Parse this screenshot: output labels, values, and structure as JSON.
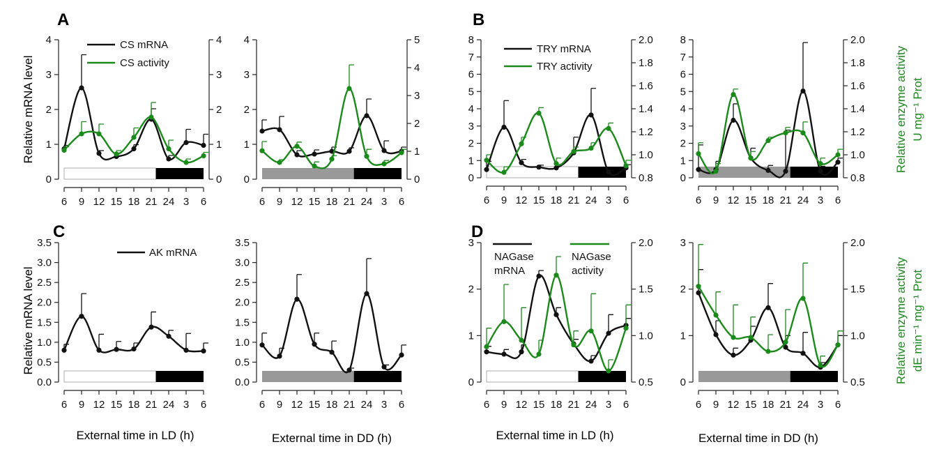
{
  "colors": {
    "mrna": "#111111",
    "activity": "#1a8a1a",
    "light_bar": "#ffffff",
    "subjective_day_bar": "#999999",
    "dark_bar": "#000000"
  },
  "ylabels": {
    "mrna": "Relative mRNA level",
    "activity_line1": "Relative enzyme activity",
    "activity_B_line2": "U mg⁻¹ Prot",
    "activity_D_line2": "dE min⁻¹ mg⁻¹ Prot"
  },
  "xlabels": {
    "ld": "External time in LD (h)",
    "dd": "External time in DD (h)"
  },
  "panels": [
    {
      "letter": "A",
      "legend": [
        "CS mRNA",
        "CS activity"
      ]
    },
    {
      "letter": "B",
      "legend": [
        "TRY mRNA",
        "TRY activity"
      ]
    },
    {
      "letter": "C",
      "legend": [
        "AK mRNA"
      ]
    },
    {
      "letter": "D",
      "legend": [
        "NAGase",
        "mRNA",
        "NAGase",
        "activity"
      ]
    }
  ],
  "chart_data": [
    {
      "id": "A-LD",
      "type": "line",
      "x": [
        6,
        9,
        12,
        15,
        18,
        21,
        24,
        27,
        30
      ],
      "xtick_labels": [
        "6",
        "9",
        "12",
        "15",
        "18",
        "21",
        "24",
        "3",
        "6"
      ],
      "xlim": [
        6,
        30
      ],
      "ylim_left": [
        0,
        4
      ],
      "yticks_left": [
        "0",
        "1",
        "2",
        "3",
        "4"
      ],
      "ylim_right": [
        0,
        4
      ],
      "yticks_right": [
        "0",
        "1",
        "2",
        "3",
        "4"
      ],
      "series": [
        {
          "name": "CS mRNA",
          "axis": "left",
          "values": [
            0.87,
            2.62,
            0.74,
            0.65,
            0.87,
            1.72,
            0.58,
            1.05,
            0.97
          ],
          "errors": [
            0.1,
            0.95,
            0.08,
            0.1,
            0.12,
            0.3,
            0.1,
            0.38,
            0.32
          ]
        },
        {
          "name": "CS activity",
          "axis": "right",
          "values": [
            0.83,
            1.3,
            1.3,
            0.72,
            1.2,
            1.78,
            0.87,
            0.48,
            0.67
          ],
          "errors": [
            0.1,
            0.35,
            0.28,
            0.1,
            0.27,
            0.42,
            0.25,
            0.1,
            0.1
          ]
        }
      ],
      "bars": [
        {
          "from": 6,
          "to": 21.8,
          "shade": "light"
        },
        {
          "from": 21.8,
          "to": 30,
          "shade": "dark"
        }
      ]
    },
    {
      "id": "A-DD",
      "type": "line",
      "x": [
        6,
        9,
        12,
        15,
        18,
        21,
        24,
        27,
        30
      ],
      "xtick_labels": [
        "6",
        "9",
        "12",
        "15",
        "18",
        "21",
        "24",
        "3",
        "6"
      ],
      "xlim": [
        6,
        30
      ],
      "ylim_left": [
        0,
        4
      ],
      "yticks_left": [
        "0",
        "1",
        "2",
        "3",
        "4"
      ],
      "ylim_right": [
        0,
        5
      ],
      "yticks_right": [
        "0",
        "1",
        "2",
        "3",
        "4",
        "5"
      ],
      "series": [
        {
          "name": "",
          "axis": "left",
          "values": [
            1.38,
            1.42,
            0.7,
            0.72,
            0.8,
            0.8,
            1.82,
            0.82,
            0.8
          ],
          "errors": [
            0.32,
            0.38,
            0.12,
            0.12,
            0.12,
            0.1,
            0.48,
            0.28,
            0.12
          ]
        },
        {
          "name": "",
          "axis": "right",
          "values": [
            1.02,
            0.6,
            1.18,
            0.47,
            0.72,
            3.25,
            0.82,
            0.55,
            0.95
          ],
          "errors": [
            0.33,
            0.1,
            0.15,
            0.15,
            0.12,
            0.85,
            0.25,
            0.12,
            0.12
          ]
        }
      ],
      "bars": [
        {
          "from": 6,
          "to": 21.8,
          "shade": "gray"
        },
        {
          "from": 21.8,
          "to": 30,
          "shade": "dark"
        }
      ]
    },
    {
      "id": "B-LD",
      "type": "line",
      "x": [
        6,
        9,
        12,
        15,
        18,
        21,
        24,
        27,
        30
      ],
      "xtick_labels": [
        "6",
        "9",
        "12",
        "15",
        "18",
        "21",
        "24",
        "3",
        "6"
      ],
      "xlim": [
        6,
        30
      ],
      "ylim_left": [
        -0.4,
        8
      ],
      "yticks_left": [
        "0",
        "1",
        "2",
        "3",
        "4",
        "5",
        "6",
        "7",
        "8"
      ],
      "ylim_right": [
        0.74,
        2.0
      ],
      "yticks_right": [
        "0.8",
        "1.0",
        "1.2",
        "1.4",
        "1.6",
        "1.8",
        "2.0"
      ],
      "series": [
        {
          "name": "TRY mRNA",
          "axis": "left",
          "values": [
            0.1,
            2.68,
            0.52,
            0.25,
            0.2,
            1.12,
            3.42,
            -0.05,
            0.2
          ],
          "errors": [
            0.5,
            1.62,
            0.2,
            0.12,
            0.1,
            0.95,
            1.62,
            0.1,
            0.2
          ]
        },
        {
          "name": "TRY activity",
          "axis": "right",
          "values": [
            0.9,
            0.79,
            1.05,
            1.33,
            0.87,
            0.98,
            1.01,
            1.19,
            0.85
          ],
          "errors": [
            0.05,
            0.05,
            0.06,
            0.05,
            0.05,
            0.04,
            0.05,
            0.05,
            0.05
          ]
        }
      ],
      "bars": [
        {
          "from": 6,
          "to": 21.8,
          "shade": "light"
        },
        {
          "from": 21.8,
          "to": 30,
          "shade": "dark"
        }
      ]
    },
    {
      "id": "B-DD",
      "type": "line",
      "x": [
        6,
        9,
        12,
        15,
        18,
        21,
        24,
        27,
        30
      ],
      "xtick_labels": [
        "6",
        "9",
        "12",
        "15",
        "18",
        "21",
        "24",
        "3",
        "6"
      ],
      "xlim": [
        6,
        30
      ],
      "ylim_left": [
        -0.4,
        8
      ],
      "yticks_left": [
        "0",
        "1",
        "2",
        "3",
        "4",
        "5",
        "6",
        "7",
        "8"
      ],
      "ylim_right": [
        0.74,
        2.0
      ],
      "yticks_right": [
        "0.8",
        "1.0",
        "1.2",
        "1.4",
        "1.6",
        "1.8",
        "2.0"
      ],
      "series": [
        {
          "name": "",
          "axis": "left",
          "values": [
            0.1,
            0.1,
            3.1,
            0.8,
            0.05,
            0.0,
            4.88,
            0.0,
            0.55
          ],
          "errors": [
            1.5,
            0.5,
            1.0,
            0.6,
            0.3,
            2.5,
            2.95,
            0.3,
            0.25
          ]
        },
        {
          "name": "",
          "axis": "right",
          "values": [
            0.96,
            0.8,
            1.5,
            0.92,
            1.08,
            1.15,
            1.15,
            0.87,
            0.95
          ],
          "errors": [
            0.1,
            0.07,
            0.05,
            0.06,
            0.03,
            0.05,
            0.1,
            0.05,
            0.05
          ]
        }
      ],
      "bars": [
        {
          "from": 6,
          "to": 21.8,
          "shade": "gray"
        },
        {
          "from": 21.8,
          "to": 30,
          "shade": "dark"
        }
      ]
    },
    {
      "id": "C-LD",
      "type": "line",
      "x": [
        6,
        9,
        12,
        15,
        18,
        21,
        24,
        27,
        30
      ],
      "xtick_labels": [
        "6",
        "9",
        "12",
        "15",
        "18",
        "21",
        "24",
        "3",
        "6"
      ],
      "xlim": [
        6,
        30
      ],
      "ylim_left": [
        0,
        3.5
      ],
      "yticks_left": [
        "0.0",
        "0.5",
        "1.0",
        "1.5",
        "2.0",
        "2.5",
        "3.0",
        "3.5"
      ],
      "series": [
        {
          "name": "AK mRNA",
          "axis": "left",
          "values": [
            0.8,
            1.65,
            0.8,
            0.82,
            0.83,
            1.38,
            1.15,
            0.8,
            0.78
          ],
          "errors": [
            0.15,
            0.57,
            0.4,
            0.2,
            0.15,
            0.38,
            0.15,
            0.42,
            0.2
          ]
        }
      ],
      "bars": [
        {
          "from": 6,
          "to": 21.8,
          "shade": "light"
        },
        {
          "from": 21.8,
          "to": 30,
          "shade": "dark"
        }
      ]
    },
    {
      "id": "C-DD",
      "type": "line",
      "x": [
        6,
        9,
        12,
        15,
        18,
        21,
        24,
        27,
        30
      ],
      "xtick_labels": [
        "6",
        "9",
        "12",
        "15",
        "18",
        "21",
        "24",
        "3",
        "6"
      ],
      "xlim": [
        6,
        30
      ],
      "ylim_left": [
        0,
        3.5
      ],
      "yticks_left": [
        "0.0",
        "0.5",
        "1.0",
        "1.5",
        "2.0",
        "2.5",
        "3.0",
        "3.5"
      ],
      "series": [
        {
          "name": "",
          "axis": "left",
          "values": [
            0.93,
            0.65,
            2.08,
            0.95,
            0.75,
            0.3,
            2.22,
            0.38,
            0.68
          ],
          "errors": [
            0.3,
            0.2,
            0.62,
            0.28,
            0.28,
            0.05,
            0.88,
            0.05,
            0.25
          ]
        }
      ],
      "bars": [
        {
          "from": 6,
          "to": 21.8,
          "shade": "gray"
        },
        {
          "from": 21.8,
          "to": 30,
          "shade": "dark"
        }
      ]
    },
    {
      "id": "D-LD",
      "type": "line",
      "x": [
        6,
        9,
        12,
        15,
        18,
        21,
        24,
        27,
        30
      ],
      "xtick_labels": [
        "6",
        "9",
        "12",
        "15",
        "18",
        "21",
        "24",
        "3",
        "6"
      ],
      "xlim": [
        6,
        30
      ],
      "ylim_left": [
        0,
        3
      ],
      "yticks_left": [
        "0",
        "1",
        "2",
        "3"
      ],
      "ylim_right": [
        0.5,
        2.0
      ],
      "yticks_right": [
        "0.5",
        "1.0",
        "1.5",
        "2.0"
      ],
      "series": [
        {
          "name": "NAGase mRNA",
          "axis": "left",
          "values": [
            0.65,
            0.6,
            0.65,
            2.28,
            1.45,
            0.82,
            0.45,
            1.05,
            1.22
          ],
          "errors": [
            0.12,
            0.1,
            0.15,
            0.12,
            0.15,
            0.1,
            0.12,
            0.4,
            0.15
          ]
        },
        {
          "name": "NAGase activity",
          "axis": "right",
          "values": [
            0.88,
            1.15,
            0.95,
            0.8,
            1.65,
            0.9,
            1.05,
            0.62,
            1.08
          ],
          "errors": [
            0.2,
            0.4,
            0.35,
            0.15,
            0.2,
            0.15,
            0.4,
            0.12,
            0.25
          ]
        }
      ],
      "bars": [
        {
          "from": 6,
          "to": 21.8,
          "shade": "light"
        },
        {
          "from": 21.8,
          "to": 30,
          "shade": "dark"
        }
      ]
    },
    {
      "id": "D-DD",
      "type": "line",
      "x": [
        6,
        9,
        12,
        15,
        18,
        21,
        24,
        27,
        30
      ],
      "xtick_labels": [
        "6",
        "9",
        "12",
        "15",
        "18",
        "21",
        "24",
        "3",
        "6"
      ],
      "xlim": [
        6,
        30
      ],
      "ylim_left": [
        0,
        3
      ],
      "yticks_left": [
        "0",
        "1",
        "2",
        "3"
      ],
      "ylim_right": [
        0.5,
        2.0
      ],
      "yticks_right": [
        "0.5",
        "1.0",
        "1.5",
        "2.0"
      ],
      "series": [
        {
          "name": "",
          "axis": "left",
          "values": [
            1.92,
            1.02,
            0.58,
            0.9,
            1.6,
            0.75,
            0.62,
            0.32,
            0.8
          ],
          "errors": [
            0.5,
            0.3,
            0.15,
            0.3,
            0.52,
            0.25,
            0.45,
            0.1,
            0.2
          ]
        },
        {
          "name": "",
          "axis": "right",
          "values": [
            1.53,
            1.22,
            0.98,
            0.98,
            0.83,
            0.93,
            1.4,
            0.68,
            0.9
          ],
          "errors": [
            0.45,
            0.25,
            0.35,
            0.22,
            0.18,
            0.35,
            0.38,
            0.1,
            0.15
          ]
        }
      ],
      "bars": [
        {
          "from": 6,
          "to": 21.8,
          "shade": "gray"
        },
        {
          "from": 21.8,
          "to": 30,
          "shade": "dark"
        }
      ]
    }
  ]
}
